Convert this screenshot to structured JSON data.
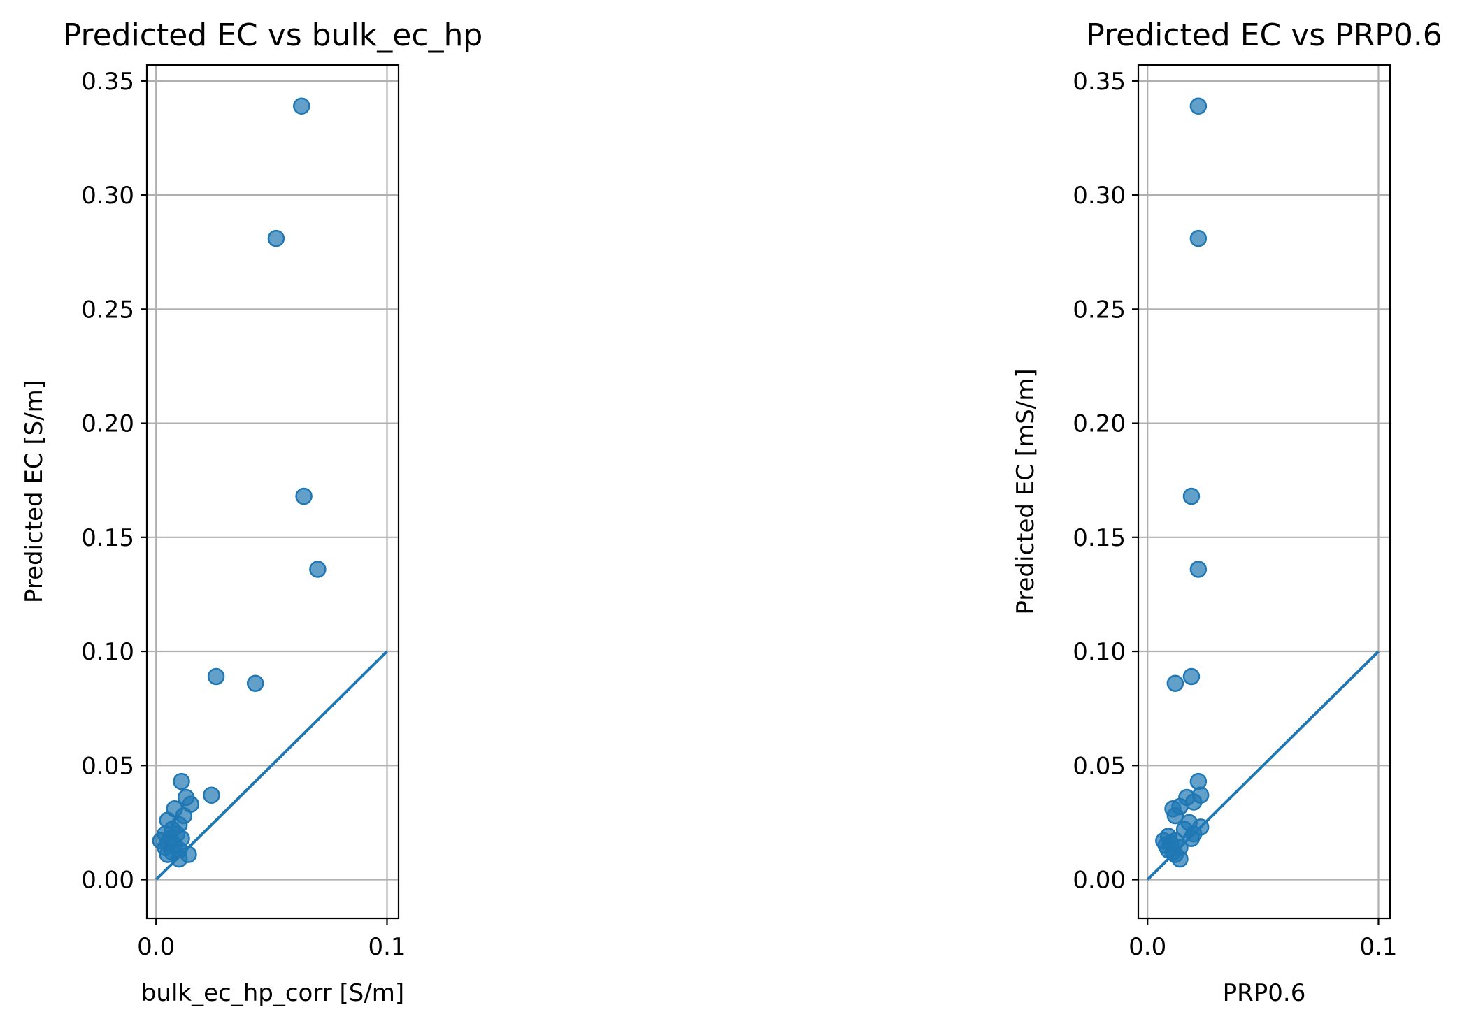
{
  "chart_data": [
    {
      "type": "scatter",
      "title": "Predicted EC vs bulk_ec_hp",
      "xlabel": "bulk_ec_hp_corr [S/m]",
      "ylabel": "Predicted EC [S/m]",
      "xlim": [
        -0.004,
        0.105
      ],
      "ylim": [
        -0.017,
        0.357
      ],
      "xticks": [
        0.0,
        0.1
      ],
      "xtick_labels": [
        "0.0",
        "0.1"
      ],
      "yticks": [
        0.0,
        0.05,
        0.1,
        0.15,
        0.2,
        0.25,
        0.3,
        0.35
      ],
      "ytick_labels": [
        "0.00",
        "0.05",
        "0.10",
        "0.15",
        "0.20",
        "0.25",
        "0.30",
        "0.35"
      ],
      "grid": true,
      "color": "#1f77b4",
      "reference_line": {
        "x": [
          0.0,
          0.1
        ],
        "y": [
          0.0,
          0.1
        ]
      },
      "points": [
        {
          "x": 0.063,
          "y": 0.339
        },
        {
          "x": 0.052,
          "y": 0.281
        },
        {
          "x": 0.064,
          "y": 0.168
        },
        {
          "x": 0.07,
          "y": 0.136
        },
        {
          "x": 0.026,
          "y": 0.089
        },
        {
          "x": 0.043,
          "y": 0.086
        },
        {
          "x": 0.011,
          "y": 0.043
        },
        {
          "x": 0.024,
          "y": 0.037
        },
        {
          "x": 0.013,
          "y": 0.036
        },
        {
          "x": 0.015,
          "y": 0.033
        },
        {
          "x": 0.008,
          "y": 0.031
        },
        {
          "x": 0.012,
          "y": 0.028
        },
        {
          "x": 0.005,
          "y": 0.026
        },
        {
          "x": 0.01,
          "y": 0.024
        },
        {
          "x": 0.007,
          "y": 0.022
        },
        {
          "x": 0.004,
          "y": 0.02
        },
        {
          "x": 0.009,
          "y": 0.02
        },
        {
          "x": 0.006,
          "y": 0.018
        },
        {
          "x": 0.002,
          "y": 0.017
        },
        {
          "x": 0.011,
          "y": 0.018
        },
        {
          "x": 0.005,
          "y": 0.016
        },
        {
          "x": 0.008,
          "y": 0.015
        },
        {
          "x": 0.004,
          "y": 0.014
        },
        {
          "x": 0.01,
          "y": 0.013
        },
        {
          "x": 0.007,
          "y": 0.012
        },
        {
          "x": 0.005,
          "y": 0.011
        },
        {
          "x": 0.014,
          "y": 0.011
        },
        {
          "x": 0.01,
          "y": 0.009
        }
      ]
    },
    {
      "type": "scatter",
      "title": "Predicted EC vs PRP0.6",
      "xlabel": "PRP0.6",
      "ylabel": "Predicted EC [mS/m]",
      "xlim": [
        -0.004,
        0.105
      ],
      "ylim": [
        -0.017,
        0.357
      ],
      "xticks": [
        0.0,
        0.1
      ],
      "xtick_labels": [
        "0.0",
        "0.1"
      ],
      "yticks": [
        0.0,
        0.05,
        0.1,
        0.15,
        0.2,
        0.25,
        0.3,
        0.35
      ],
      "ytick_labels": [
        "0.00",
        "0.05",
        "0.10",
        "0.15",
        "0.20",
        "0.25",
        "0.30",
        "0.35"
      ],
      "grid": true,
      "color": "#1f77b4",
      "reference_line": {
        "x": [
          0.0,
          0.1
        ],
        "y": [
          0.0,
          0.1
        ]
      },
      "points": [
        {
          "x": 0.022,
          "y": 0.339
        },
        {
          "x": 0.022,
          "y": 0.281
        },
        {
          "x": 0.019,
          "y": 0.168
        },
        {
          "x": 0.022,
          "y": 0.136
        },
        {
          "x": 0.019,
          "y": 0.089
        },
        {
          "x": 0.012,
          "y": 0.086
        },
        {
          "x": 0.022,
          "y": 0.043
        },
        {
          "x": 0.023,
          "y": 0.037
        },
        {
          "x": 0.017,
          "y": 0.036
        },
        {
          "x": 0.02,
          "y": 0.034
        },
        {
          "x": 0.014,
          "y": 0.032
        },
        {
          "x": 0.011,
          "y": 0.031
        },
        {
          "x": 0.012,
          "y": 0.028
        },
        {
          "x": 0.018,
          "y": 0.025
        },
        {
          "x": 0.023,
          "y": 0.023
        },
        {
          "x": 0.016,
          "y": 0.022
        },
        {
          "x": 0.02,
          "y": 0.02
        },
        {
          "x": 0.009,
          "y": 0.019
        },
        {
          "x": 0.019,
          "y": 0.018
        },
        {
          "x": 0.007,
          "y": 0.017
        },
        {
          "x": 0.012,
          "y": 0.017
        },
        {
          "x": 0.01,
          "y": 0.016
        },
        {
          "x": 0.008,
          "y": 0.015
        },
        {
          "x": 0.014,
          "y": 0.014
        },
        {
          "x": 0.009,
          "y": 0.013
        },
        {
          "x": 0.011,
          "y": 0.012
        },
        {
          "x": 0.012,
          "y": 0.011
        },
        {
          "x": 0.014,
          "y": 0.009
        }
      ]
    }
  ]
}
